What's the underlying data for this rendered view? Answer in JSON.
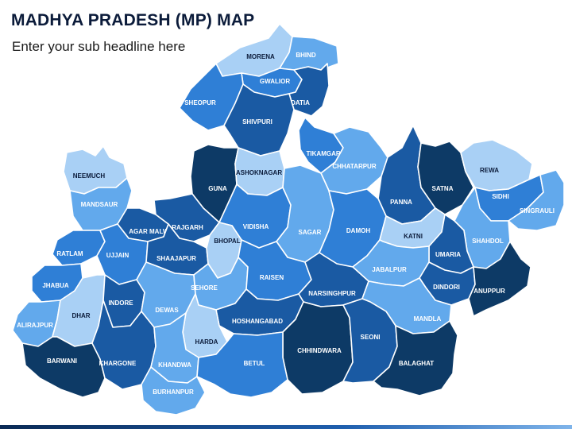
{
  "header": {
    "title": "MADHYA PRADESH (MP) MAP",
    "subtitle": "Enter your sub headline here"
  },
  "palette": {
    "navy": "#0d3a66",
    "dark": "#1a5aa3",
    "medium": "#2f7fd6",
    "light": "#62a9ec",
    "pale": "#a9d0f5",
    "label_dark_text": "#ffffff",
    "label_light_text": "#0b1b3a"
  },
  "districts": [
    {
      "key": "morena",
      "label": "MORENA",
      "shade": "pale"
    },
    {
      "key": "bhind",
      "label": "BHIND",
      "shade": "light"
    },
    {
      "key": "gwalior",
      "label": "GWALIOR",
      "shade": "medium"
    },
    {
      "key": "datia",
      "label": "DATIA",
      "shade": "dark"
    },
    {
      "key": "sheopur",
      "label": "SHEOPUR",
      "shade": "medium"
    },
    {
      "key": "shivpuri",
      "label": "SHIVPURI",
      "shade": "dark"
    },
    {
      "key": "neemuch",
      "label": "NEEMUCH",
      "shade": "pale"
    },
    {
      "key": "mandsaur",
      "label": "MANDSAUR",
      "shade": "light"
    },
    {
      "key": "guna",
      "label": "GUNA",
      "shade": "navy"
    },
    {
      "key": "ashoknagar",
      "label": "ASHOKNAGAR",
      "shade": "pale"
    },
    {
      "key": "tikamgarh",
      "label": "TIKAMGARH",
      "shade": "medium"
    },
    {
      "key": "chhatarpur",
      "label": "CHHATARPUR",
      "shade": "light"
    },
    {
      "key": "panna",
      "label": "PANNA",
      "shade": "dark"
    },
    {
      "key": "satna",
      "label": "SATNA",
      "shade": "navy"
    },
    {
      "key": "rewa",
      "label": "REWA",
      "shade": "pale"
    },
    {
      "key": "sidhi",
      "label": "SIDHI",
      "shade": "medium"
    },
    {
      "key": "singrauli",
      "label": "SINGRAULI",
      "shade": "light"
    },
    {
      "key": "ratlam",
      "label": "RATLAM",
      "shade": "medium"
    },
    {
      "key": "agar_malwa",
      "label": "AGAR MALWA",
      "shade": "dark"
    },
    {
      "key": "rajgarh",
      "label": "RAJGARH",
      "shade": "dark"
    },
    {
      "key": "ujjain",
      "label": "UJJAIN",
      "shade": "medium"
    },
    {
      "key": "shaajapur",
      "label": "SHAAJAPUR",
      "shade": "dark"
    },
    {
      "key": "vidisha",
      "label": "VIDISHA",
      "shade": "medium"
    },
    {
      "key": "bhopal",
      "label": "BHOPAL",
      "shade": "pale"
    },
    {
      "key": "sagar",
      "label": "SAGAR",
      "shade": "light"
    },
    {
      "key": "damoh",
      "label": "DAMOH",
      "shade": "medium"
    },
    {
      "key": "katni",
      "label": "KATNI",
      "shade": "pale"
    },
    {
      "key": "shahdol",
      "label": "SHAHDOL",
      "shade": "light"
    },
    {
      "key": "umaria",
      "label": "UMARIA",
      "shade": "dark"
    },
    {
      "key": "jabalpur",
      "label": "JABALPUR",
      "shade": "light"
    },
    {
      "key": "dindori",
      "label": "DINDORI",
      "shade": "dark"
    },
    {
      "key": "anuppur",
      "label": "ANUPPUR",
      "shade": "navy"
    },
    {
      "key": "jhabua",
      "label": "JHABUA",
      "shade": "medium"
    },
    {
      "key": "alirajpur",
      "label": "ALIRAJPUR",
      "shade": "light"
    },
    {
      "key": "dhar",
      "label": "DHAR",
      "shade": "pale"
    },
    {
      "key": "indore",
      "label": "INDORE",
      "shade": "dark"
    },
    {
      "key": "dewas",
      "label": "DEWAS",
      "shade": "light"
    },
    {
      "key": "sehore",
      "label": "SEHORE",
      "shade": "light"
    },
    {
      "key": "raisen",
      "label": "RAISEN",
      "shade": "medium"
    },
    {
      "key": "narsinghpur",
      "label": "NARSINGHPUR",
      "shade": "dark"
    },
    {
      "key": "mandla",
      "label": "MANDLA",
      "shade": "light"
    },
    {
      "key": "hoshangabad",
      "label": "HOSHANGABAD",
      "shade": "dark"
    },
    {
      "key": "harda",
      "label": "HARDA",
      "shade": "pale"
    },
    {
      "key": "chhindwara",
      "label": "CHHINDWARA",
      "shade": "navy"
    },
    {
      "key": "seoni",
      "label": "SEONI",
      "shade": "dark"
    },
    {
      "key": "balaghat",
      "label": "BALAGHAT",
      "shade": "navy"
    },
    {
      "key": "barwani",
      "label": "BARWANI",
      "shade": "navy"
    },
    {
      "key": "khargone",
      "label": "KHARGONE",
      "shade": "dark"
    },
    {
      "key": "khandwa",
      "label": "KHANDWA",
      "shade": "light"
    },
    {
      "key": "betul",
      "label": "BETUL",
      "shade": "medium"
    },
    {
      "key": "burhanpur",
      "label": "BURHANPUR",
      "shade": "light"
    }
  ]
}
